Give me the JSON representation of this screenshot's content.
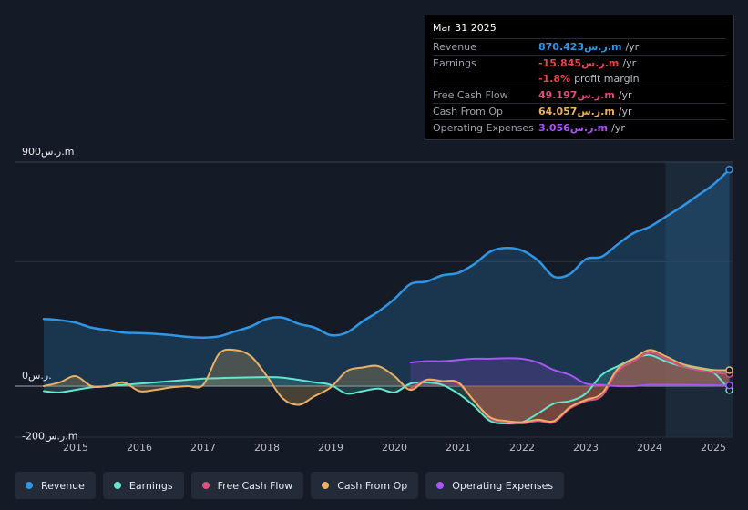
{
  "colors": {
    "revenue": "#2f95e4",
    "earnings": "#62e6cf",
    "fcf": "#d7507f",
    "cfo": "#e9b065",
    "opex": "#a855f7"
  },
  "tooltip": {
    "date": "Mar 31 2025",
    "rows": [
      {
        "label": "Revenue",
        "value": "870.423ر.س.m",
        "unit": "/yr",
        "color": "#2f95e4"
      },
      {
        "label": "Earnings",
        "value": "-15.845ر.س.m",
        "unit": "/yr",
        "color": "#e0464a"
      },
      {
        "label": "",
        "value": "-1.8%",
        "unit": "profit margin",
        "color": "#e0464a"
      },
      {
        "label": "Free Cash Flow",
        "value": "49.197ر.س.m",
        "unit": "/yr",
        "color": "#d7507f"
      },
      {
        "label": "Cash From Op",
        "value": "64.057ر.س.m",
        "unit": "/yr",
        "color": "#e9b065"
      },
      {
        "label": "Operating Expenses",
        "value": "3.056ر.س.m",
        "unit": "/yr",
        "color": "#a855f7"
      }
    ]
  },
  "legend": [
    {
      "label": "Revenue",
      "color": "#2f95e4"
    },
    {
      "label": "Earnings",
      "color": "#62e6cf"
    },
    {
      "label": "Free Cash Flow",
      "color": "#d7507f"
    },
    {
      "label": "Cash From Op",
      "color": "#e9b065"
    },
    {
      "label": "Operating Expenses",
      "color": "#a855f7"
    }
  ],
  "chart_data": {
    "type": "area",
    "title": "",
    "unit": "ر.س.m",
    "y_axis_labels": [
      "900ر.س.m",
      "0ر.س.",
      "-200ر.س.m"
    ],
    "ylim": [
      -200,
      900
    ],
    "xlim": [
      2014.5,
      2025.3
    ],
    "x_ticks": [
      2015,
      2016,
      2017,
      2018,
      2019,
      2020,
      2021,
      2022,
      2023,
      2024,
      2025
    ],
    "x_tick_labels": [
      "2015",
      "2016",
      "2017",
      "2018",
      "2019",
      "2020",
      "2021",
      "2022",
      "2023",
      "2024",
      "2025"
    ],
    "forecast_start": 2024.25,
    "series": [
      {
        "name": "Revenue",
        "key": "revenue",
        "points": [
          [
            2014.5,
            270
          ],
          [
            2014.75,
            265
          ],
          [
            2015,
            255
          ],
          [
            2015.25,
            235
          ],
          [
            2015.5,
            225
          ],
          [
            2015.75,
            215
          ],
          [
            2016,
            213
          ],
          [
            2016.25,
            210
          ],
          [
            2016.5,
            205
          ],
          [
            2016.75,
            198
          ],
          [
            2017,
            195
          ],
          [
            2017.25,
            200
          ],
          [
            2017.5,
            220
          ],
          [
            2017.75,
            240
          ],
          [
            2018,
            270
          ],
          [
            2018.25,
            275
          ],
          [
            2018.5,
            250
          ],
          [
            2018.75,
            235
          ],
          [
            2019,
            205
          ],
          [
            2019.25,
            215
          ],
          [
            2019.5,
            260
          ],
          [
            2019.75,
            300
          ],
          [
            2020,
            350
          ],
          [
            2020.25,
            410
          ],
          [
            2020.5,
            420
          ],
          [
            2020.75,
            445
          ],
          [
            2021,
            455
          ],
          [
            2021.25,
            490
          ],
          [
            2021.5,
            540
          ],
          [
            2021.75,
            555
          ],
          [
            2022,
            545
          ],
          [
            2022.25,
            505
          ],
          [
            2022.5,
            440
          ],
          [
            2022.75,
            450
          ],
          [
            2023,
            510
          ],
          [
            2023.25,
            520
          ],
          [
            2023.5,
            570
          ],
          [
            2023.75,
            615
          ],
          [
            2024,
            640
          ],
          [
            2024.25,
            680
          ],
          [
            2024.5,
            720
          ],
          [
            2024.75,
            765
          ],
          [
            2025,
            810
          ],
          [
            2025.25,
            870
          ]
        ]
      },
      {
        "name": "Earnings",
        "key": "earnings",
        "points": [
          [
            2014.5,
            -20
          ],
          [
            2014.75,
            -25
          ],
          [
            2015,
            -15
          ],
          [
            2015.25,
            -5
          ],
          [
            2015.5,
            0
          ],
          [
            2015.75,
            5
          ],
          [
            2016,
            10
          ],
          [
            2016.25,
            15
          ],
          [
            2016.5,
            20
          ],
          [
            2016.75,
            25
          ],
          [
            2017,
            30
          ],
          [
            2017.25,
            32
          ],
          [
            2017.5,
            34
          ],
          [
            2017.75,
            35
          ],
          [
            2018,
            36
          ],
          [
            2018.25,
            34
          ],
          [
            2018.5,
            25
          ],
          [
            2018.75,
            15
          ],
          [
            2019,
            5
          ],
          [
            2019.25,
            -30
          ],
          [
            2019.5,
            -20
          ],
          [
            2019.75,
            -10
          ],
          [
            2020,
            -25
          ],
          [
            2020.25,
            10
          ],
          [
            2020.5,
            15
          ],
          [
            2020.75,
            5
          ],
          [
            2021,
            -30
          ],
          [
            2021.25,
            -80
          ],
          [
            2021.5,
            -140
          ],
          [
            2021.75,
            -150
          ],
          [
            2022,
            -145
          ],
          [
            2022.25,
            -110
          ],
          [
            2022.5,
            -70
          ],
          [
            2022.75,
            -60
          ],
          [
            2023,
            -30
          ],
          [
            2023.25,
            45
          ],
          [
            2023.5,
            80
          ],
          [
            2023.75,
            110
          ],
          [
            2024,
            125
          ],
          [
            2024.25,
            100
          ],
          [
            2024.5,
            80
          ],
          [
            2024.75,
            70
          ],
          [
            2025,
            55
          ],
          [
            2025.25,
            -16
          ]
        ]
      },
      {
        "name": "Free Cash Flow",
        "key": "fcf",
        "points": [
          [
            2020.25,
            -10
          ],
          [
            2020.5,
            25
          ],
          [
            2020.75,
            20
          ],
          [
            2021,
            10
          ],
          [
            2021.25,
            -60
          ],
          [
            2021.5,
            -130
          ],
          [
            2021.75,
            -145
          ],
          [
            2022,
            -150
          ],
          [
            2022.25,
            -140
          ],
          [
            2022.5,
            -145
          ],
          [
            2022.75,
            -90
          ],
          [
            2023,
            -60
          ],
          [
            2023.25,
            -40
          ],
          [
            2023.5,
            60
          ],
          [
            2023.75,
            100
          ],
          [
            2024,
            135
          ],
          [
            2024.25,
            110
          ],
          [
            2024.5,
            80
          ],
          [
            2024.75,
            65
          ],
          [
            2025,
            55
          ],
          [
            2025.25,
            49
          ]
        ]
      },
      {
        "name": "Cash From Op",
        "key": "cfo",
        "points": [
          [
            2014.5,
            0
          ],
          [
            2014.75,
            15
          ],
          [
            2015,
            40
          ],
          [
            2015.25,
            0
          ],
          [
            2015.5,
            0
          ],
          [
            2015.75,
            15
          ],
          [
            2016,
            -20
          ],
          [
            2016.25,
            -15
          ],
          [
            2016.5,
            -5
          ],
          [
            2016.75,
            0
          ],
          [
            2017,
            5
          ],
          [
            2017.25,
            130
          ],
          [
            2017.5,
            145
          ],
          [
            2017.75,
            120
          ],
          [
            2018,
            40
          ],
          [
            2018.25,
            -50
          ],
          [
            2018.5,
            -75
          ],
          [
            2018.75,
            -40
          ],
          [
            2019,
            -5
          ],
          [
            2019.25,
            60
          ],
          [
            2019.5,
            75
          ],
          [
            2019.75,
            80
          ],
          [
            2020,
            40
          ],
          [
            2020.25,
            -15
          ],
          [
            2020.5,
            25
          ],
          [
            2020.75,
            20
          ],
          [
            2021,
            15
          ],
          [
            2021.25,
            -60
          ],
          [
            2021.5,
            -125
          ],
          [
            2021.75,
            -140
          ],
          [
            2022,
            -145
          ],
          [
            2022.25,
            -135
          ],
          [
            2022.5,
            -140
          ],
          [
            2022.75,
            -85
          ],
          [
            2023,
            -55
          ],
          [
            2023.25,
            -30
          ],
          [
            2023.5,
            70
          ],
          [
            2023.75,
            110
          ],
          [
            2024,
            145
          ],
          [
            2024.25,
            120
          ],
          [
            2024.5,
            90
          ],
          [
            2024.75,
            75
          ],
          [
            2025,
            65
          ],
          [
            2025.25,
            64
          ]
        ]
      },
      {
        "name": "Operating Expenses",
        "key": "opex",
        "points": [
          [
            2020.25,
            95
          ],
          [
            2020.5,
            100
          ],
          [
            2020.75,
            100
          ],
          [
            2021,
            105
          ],
          [
            2021.25,
            110
          ],
          [
            2021.5,
            110
          ],
          [
            2021.75,
            112
          ],
          [
            2022,
            110
          ],
          [
            2022.25,
            95
          ],
          [
            2022.5,
            65
          ],
          [
            2022.75,
            45
          ],
          [
            2023,
            10
          ],
          [
            2023.25,
            5
          ],
          [
            2023.5,
            0
          ],
          [
            2023.75,
            0
          ],
          [
            2024,
            5
          ],
          [
            2024.25,
            5
          ],
          [
            2024.5,
            5
          ],
          [
            2024.75,
            4
          ],
          [
            2025,
            3
          ],
          [
            2025.25,
            3
          ]
        ]
      }
    ]
  }
}
